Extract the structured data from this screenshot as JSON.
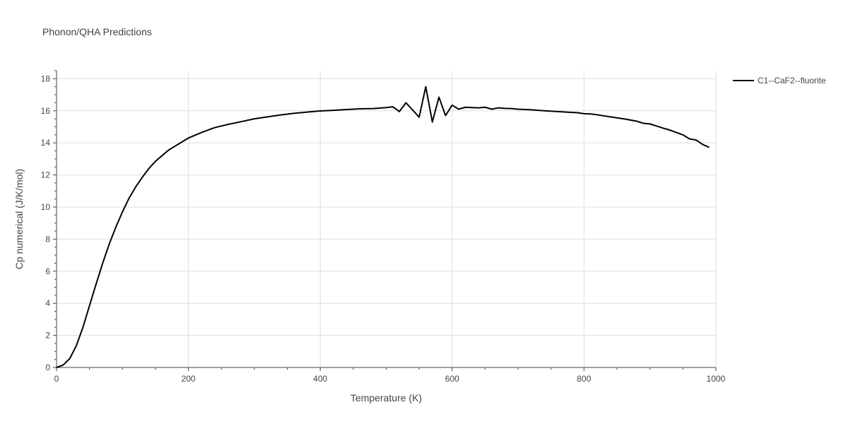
{
  "chart_data": {
    "type": "line",
    "title": "Phonon/QHA Predictions",
    "xlabel": "Temperature (K)",
    "ylabel": "Cp numerical (J/K/mol)",
    "xlim": [
      0,
      1000
    ],
    "ylim": [
      0,
      18.5
    ],
    "x_ticks": [
      0,
      200,
      400,
      600,
      800,
      1000
    ],
    "y_ticks": [
      0,
      2,
      4,
      6,
      8,
      10,
      12,
      14,
      16,
      18
    ],
    "grid": true,
    "legend_position": "top-right",
    "series": [
      {
        "name": "C1--CaF2--fluorite",
        "color": "#000000",
        "x": [
          0,
          10,
          20,
          30,
          40,
          50,
          60,
          70,
          80,
          90,
          100,
          110,
          120,
          130,
          140,
          150,
          160,
          170,
          180,
          190,
          200,
          220,
          240,
          260,
          280,
          300,
          320,
          340,
          360,
          380,
          400,
          420,
          440,
          460,
          480,
          500,
          510,
          520,
          530,
          540,
          550,
          560,
          570,
          580,
          590,
          600,
          610,
          620,
          630,
          640,
          650,
          660,
          670,
          680,
          690,
          700,
          720,
          740,
          760,
          780,
          790,
          800,
          810,
          820,
          840,
          860,
          880,
          890,
          900,
          910,
          920,
          930,
          940,
          950,
          960,
          970,
          980,
          990
        ],
        "y": [
          0.0,
          0.15,
          0.55,
          1.35,
          2.5,
          3.85,
          5.2,
          6.5,
          7.7,
          8.75,
          9.7,
          10.55,
          11.25,
          11.85,
          12.4,
          12.85,
          13.2,
          13.55,
          13.8,
          14.05,
          14.3,
          14.65,
          14.95,
          15.15,
          15.32,
          15.5,
          15.62,
          15.74,
          15.84,
          15.92,
          15.99,
          16.03,
          16.08,
          16.12,
          16.14,
          16.2,
          16.25,
          15.95,
          16.5,
          16.05,
          15.6,
          17.5,
          15.3,
          16.85,
          15.7,
          16.35,
          16.1,
          16.22,
          16.2,
          16.18,
          16.22,
          16.1,
          16.18,
          16.15,
          16.14,
          16.1,
          16.06,
          16.0,
          15.95,
          15.9,
          15.88,
          15.82,
          15.8,
          15.75,
          15.62,
          15.5,
          15.35,
          15.22,
          15.18,
          15.05,
          14.92,
          14.8,
          14.65,
          14.5,
          14.25,
          14.18,
          13.9,
          13.72
        ]
      }
    ]
  }
}
